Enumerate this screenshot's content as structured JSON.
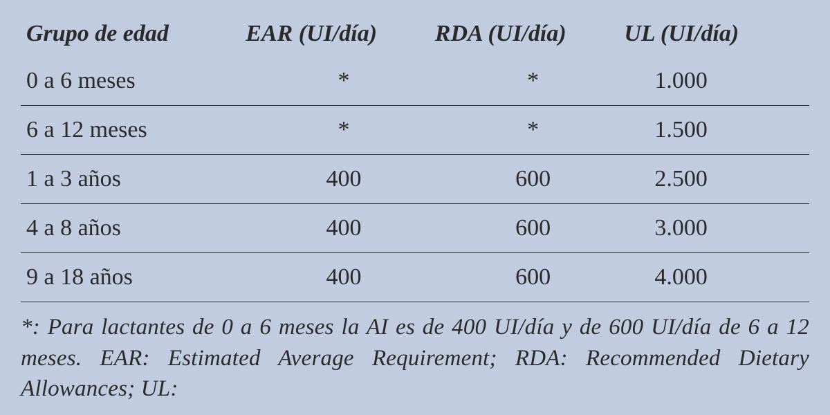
{
  "table": {
    "background_color": "#c1cce0",
    "text_color": "#2a2a2a",
    "border_color": "#2a2a2a",
    "header_fontsize": 34,
    "header_fontstyle": "bold italic",
    "cell_fontsize": 34,
    "columns": [
      {
        "label": "Grupo de edad",
        "width_pct": 28,
        "align": "left"
      },
      {
        "label": "EAR (UI/día)",
        "width_pct": 24,
        "align": "center"
      },
      {
        "label": "RDA (UI/día)",
        "width_pct": 24,
        "align": "center"
      },
      {
        "label": "UL (UI/día)",
        "width_pct": 24,
        "align": "left"
      }
    ],
    "rows": [
      {
        "age": "0 a 6 meses",
        "ear": "*",
        "rda": "*",
        "ul": "1.000"
      },
      {
        "age": "6 a 12 meses",
        "ear": "*",
        "rda": "*",
        "ul": "1.500"
      },
      {
        "age": "1 a 3 años",
        "ear": "400",
        "rda": "600",
        "ul": "2.500"
      },
      {
        "age": "4 a 8 años",
        "ear": "400",
        "rda": "600",
        "ul": "3.000"
      },
      {
        "age": "9 a 18 años",
        "ear": "400",
        "rda": "600",
        "ul": "4.000"
      }
    ]
  },
  "footnote": {
    "text": "*: Para lactantes de 0 a 6 meses la AI es de 400 UI/día y de 600 UI/día de 6 a 12 meses. EAR: Estimated Average Requirement; RDA: Recommended Dietary Allowances; UL:",
    "fontsize": 33,
    "fontstyle": "italic",
    "align": "justify"
  }
}
